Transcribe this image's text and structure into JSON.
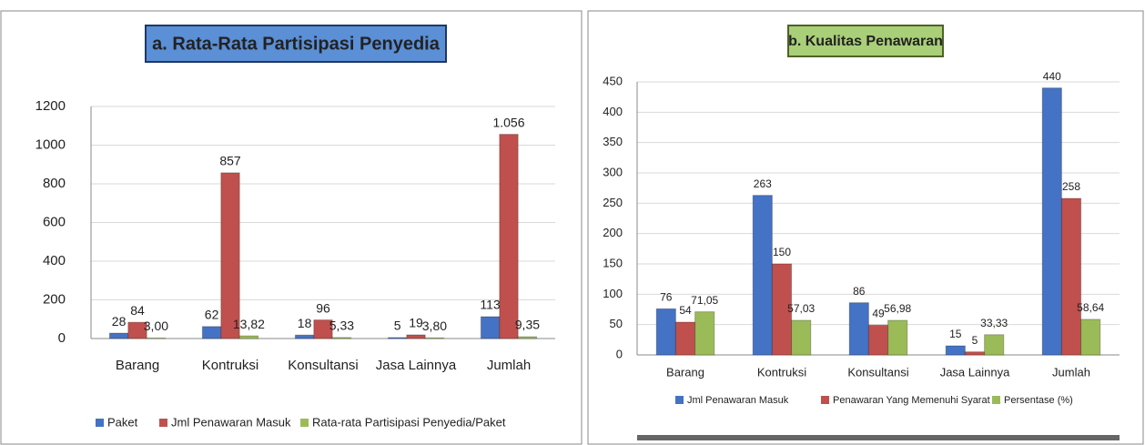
{
  "chart_data": [
    {
      "type": "bar",
      "title": "a. Rata-Rata Partisipasi Penyedia",
      "categories": [
        "Barang",
        "Kontruksi",
        "Konsultansi",
        "Jasa Lainnya",
        "Jumlah"
      ],
      "series": [
        {
          "name": "Paket",
          "color": "#4472c4",
          "values": [
            28,
            62,
            18,
            5,
            113
          ]
        },
        {
          "name": "Jml Penawaran Masuk",
          "color": "#c0504d",
          "values": [
            84,
            857,
            96,
            19,
            1056
          ],
          "value_labels": [
            "84",
            "857",
            "96",
            "19",
            "1.056"
          ]
        },
        {
          "name": "Rata-rata Partisipasi Penyedia/Paket",
          "color": "#9bbb59",
          "values": [
            3.0,
            13.82,
            5.33,
            3.8,
            9.35
          ],
          "value_labels": [
            "3,00",
            "13,82",
            "5,33",
            "3,80",
            "9,35"
          ]
        }
      ],
      "ylim": [
        0,
        1200
      ],
      "yticks": [
        0,
        200,
        400,
        600,
        800,
        1000,
        1200
      ],
      "grid": true,
      "legend": "bottom"
    },
    {
      "type": "bar",
      "title": "b. Kualitas Penawaran",
      "categories": [
        "Barang",
        "Kontruksi",
        "Konsultansi",
        "Jasa Lainnya",
        "Jumlah"
      ],
      "series": [
        {
          "name": "Jml Penawaran Masuk",
          "color": "#4472c4",
          "values": [
            76,
            263,
            86,
            15,
            440
          ]
        },
        {
          "name": "Penawaran Yang Memenuhi Syarat",
          "color": "#c0504d",
          "values": [
            54,
            150,
            49,
            5,
            258
          ]
        },
        {
          "name": "Persentase (%)",
          "color": "#9bbb59",
          "values": [
            71.05,
            57.03,
            56.98,
            33.33,
            58.64
          ],
          "value_labels": [
            "71,05",
            "57,03",
            "56,98",
            "33,33",
            "58,64"
          ]
        }
      ],
      "ylim": [
        0,
        450
      ],
      "yticks": [
        0,
        50,
        100,
        150,
        200,
        250,
        300,
        350,
        400,
        450
      ],
      "grid": true,
      "legend": "bottom"
    }
  ]
}
